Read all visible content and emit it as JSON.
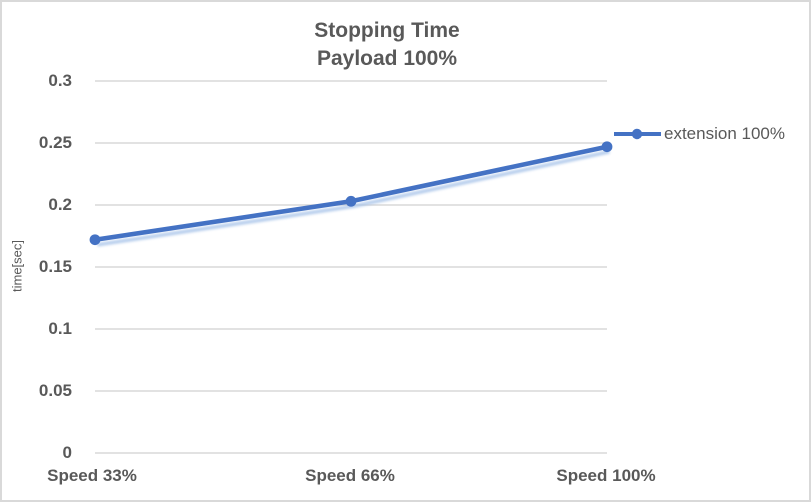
{
  "title": {
    "line1": "Stopping Time",
    "line2": "Payload 100%"
  },
  "chart_data": {
    "type": "line",
    "title": "Stopping Time\nPayload 100%",
    "categories": [
      "Speed 33%",
      "Speed 66%",
      "Speed 100%"
    ],
    "series": [
      {
        "name": "extension 100%",
        "values": [
          0.172,
          0.203,
          0.247
        ]
      }
    ],
    "xlabel": "",
    "ylabel": "time[sec]",
    "ylim": [
      0,
      0.3
    ],
    "ytick_step": 0.05,
    "ytick_labels": [
      "0.3",
      "0.25",
      "0.2",
      "0.15",
      "0.1",
      "0.05",
      "0"
    ],
    "grid": "horizontal",
    "legend_position": "right",
    "marker": "circle",
    "colors": {
      "line": "#4472C4",
      "line_shadow": "#A9C4E9",
      "grid": "#D9D9D9",
      "text": "#595959",
      "border": "#D9D9D9",
      "background": "#FFFFFF"
    }
  }
}
